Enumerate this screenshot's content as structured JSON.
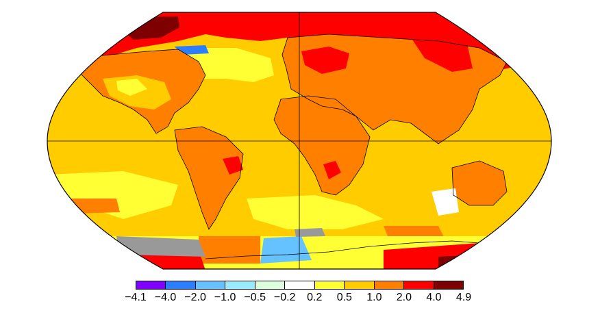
{
  "map": {
    "projection": "Robinson",
    "colors": {
      "ocean_base": "#ffcc00",
      "land_base": "#ff7f00",
      "no_data": "#999999",
      "coastline": "#000000"
    }
  },
  "legend": {
    "swatches": [
      {
        "color": "#7f00ff"
      },
      {
        "color": "#2b7fff"
      },
      {
        "color": "#66c2ff"
      },
      {
        "color": "#99ecff"
      },
      {
        "color": "#ddffdd"
      },
      {
        "color": "#ffffff"
      },
      {
        "color": "#ffff33"
      },
      {
        "color": "#ffcc00"
      },
      {
        "color": "#ff7f00"
      },
      {
        "color": "#ff0000"
      },
      {
        "color": "#7f0000"
      }
    ],
    "ticks": [
      "−4.1",
      "−4.0",
      "−2.0",
      "−1.0",
      "−0.5",
      "−0.2",
      "0.2",
      "0.5",
      "1.0",
      "2.0",
      "4.0",
      "4.9"
    ]
  }
}
